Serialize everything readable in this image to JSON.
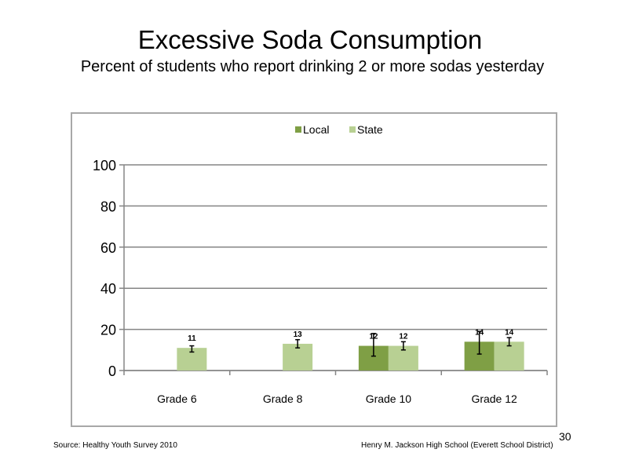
{
  "slide": {
    "title": "Excessive Soda Consumption",
    "subtitle": "Percent of students who report drinking 2 or more sodas yesterday",
    "source": "Source: Healthy Youth Survey 2010",
    "school": "Henry M. Jackson High School (Everett School District)",
    "page_number": "30"
  },
  "colors": {
    "local": "#7f9f45",
    "state": "#b8d093",
    "grid": "#858585",
    "error_bar": "#000000"
  },
  "chart_data": {
    "type": "bar",
    "title": "",
    "xlabel": "",
    "ylabel": "",
    "ylim": [
      0,
      100
    ],
    "yticks": [
      0,
      20,
      40,
      60,
      80,
      100
    ],
    "grid": true,
    "legend_position": "top",
    "categories": [
      "Grade 6",
      "Grade 8",
      "Grade 10",
      "Grade 12"
    ],
    "series": [
      {
        "name": "Local",
        "values": [
          null,
          null,
          12,
          14
        ],
        "labels": [
          "",
          "",
          "12",
          "14"
        ],
        "error_low": [
          null,
          null,
          7,
          8
        ],
        "error_high": [
          null,
          null,
          18,
          19
        ]
      },
      {
        "name": "State",
        "values": [
          11,
          13,
          12,
          14
        ],
        "labels": [
          "11",
          "13",
          "12",
          "14"
        ],
        "error_low": [
          9,
          11,
          10,
          12
        ],
        "error_high": [
          12,
          15,
          14,
          16
        ]
      }
    ]
  }
}
